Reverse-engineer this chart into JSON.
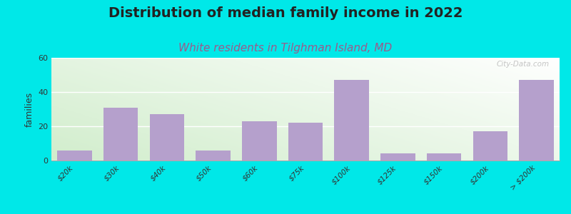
{
  "title": "Distribution of median family income in 2022",
  "subtitle": "White residents in Tilghman Island, MD",
  "ylabel": "families",
  "categories": [
    "$20k",
    "$30k",
    "$40k",
    "$50k",
    "$60k",
    "$75k",
    "$100k",
    "$125k",
    "$150k",
    "$200k",
    "> $200k"
  ],
  "values": [
    6,
    31,
    27,
    6,
    23,
    22,
    47,
    4,
    4,
    17,
    47
  ],
  "bar_color": "#b5a0cc",
  "bg_color": "#00e8e8",
  "ylim": [
    0,
    60
  ],
  "yticks": [
    0,
    20,
    40,
    60
  ],
  "title_fontsize": 14,
  "title_color": "#222222",
  "subtitle_fontsize": 11,
  "subtitle_color": "#9b5b8b",
  "watermark": "City-Data.com",
  "gradient_colors": [
    "#d5eacc",
    "#f0f8ee",
    "#ffffff"
  ],
  "bar_width": 0.75
}
